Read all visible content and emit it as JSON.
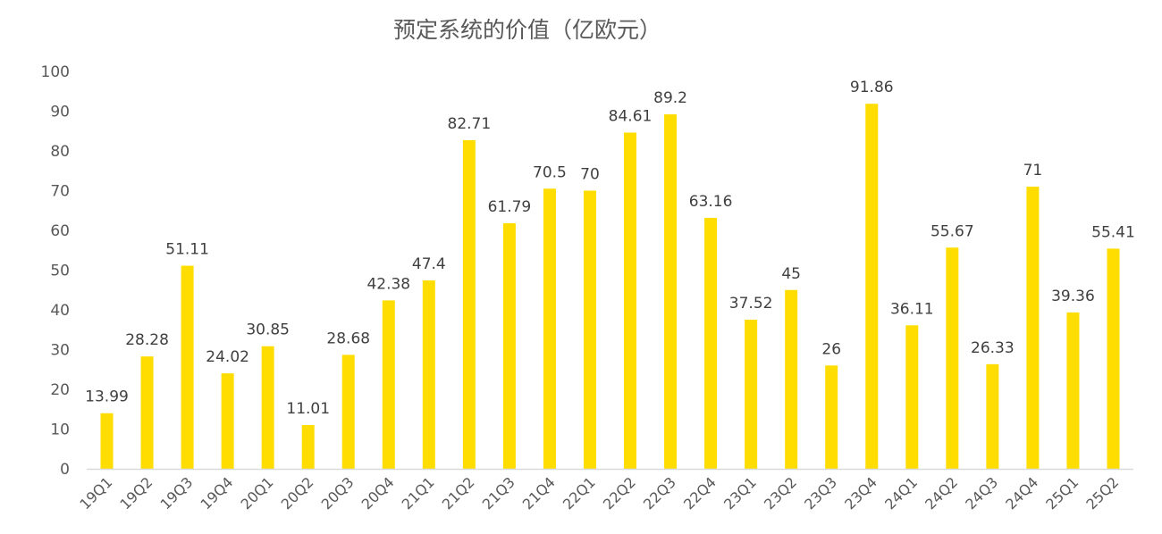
{
  "chart_data": {
    "type": "bar",
    "title": "预定系统的价值（亿欧元）",
    "categories": [
      "19Q1",
      "19Q2",
      "19Q3",
      "19Q4",
      "20Q1",
      "20Q2",
      "20Q3",
      "20Q4",
      "21Q1",
      "21Q2",
      "21Q3",
      "21Q4",
      "22Q1",
      "22Q2",
      "22Q3",
      "22Q4",
      "23Q1",
      "23Q2",
      "23Q3",
      "23Q4",
      "24Q1",
      "24Q2",
      "24Q3",
      "24Q4",
      "25Q1",
      "25Q2"
    ],
    "values": [
      13.99,
      28.28,
      51.11,
      24.02,
      30.85,
      11.01,
      28.68,
      42.38,
      47.4,
      82.71,
      61.79,
      70.5,
      70,
      84.61,
      89.2,
      63.16,
      37.52,
      45,
      26,
      91.86,
      36.11,
      55.67,
      26.33,
      71,
      39.36,
      55.41
    ],
    "value_labels": [
      "13.99",
      "28.28",
      "51.11",
      "24.02",
      "30.85",
      "11.01",
      "28.68",
      "42.38",
      "47.4",
      "82.71",
      "61.79",
      "70.5",
      "70",
      "84.61",
      "89.2",
      "63.16",
      "37.52",
      "45",
      "26",
      "91.86",
      "36.11",
      "55.67",
      "26.33",
      "71",
      "39.36",
      "55.41"
    ],
    "ylim": [
      0,
      100
    ],
    "yticks": [
      "0",
      "10",
      "20",
      "30",
      "40",
      "50",
      "60",
      "70",
      "80",
      "90",
      "100"
    ],
    "xlabel": "",
    "ylabel": "",
    "grid": false,
    "legend": "none",
    "colors": {
      "bar": "#FFDD00",
      "axis": "#D9D9D9"
    }
  }
}
